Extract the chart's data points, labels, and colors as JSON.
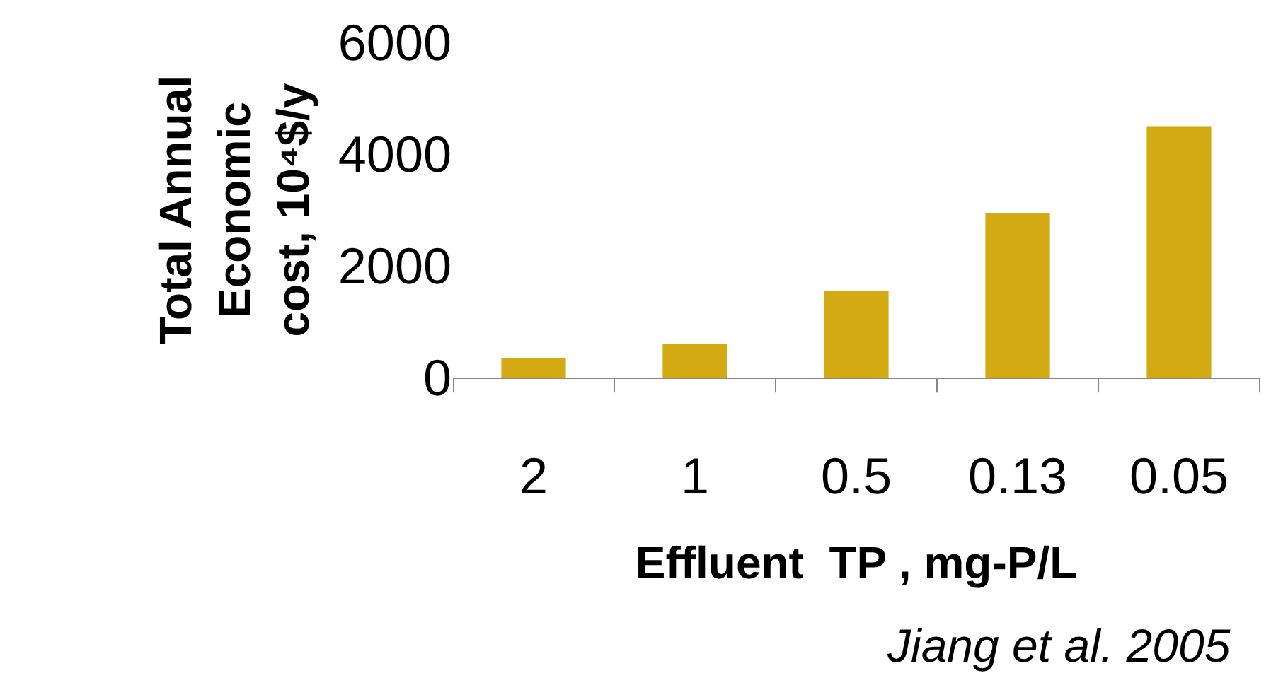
{
  "chart_data": {
    "type": "bar",
    "categories": [
      "2",
      "1",
      "0.5",
      "0.13",
      "0.05"
    ],
    "values": [
      350,
      600,
      1550,
      2950,
      4500
    ],
    "color": "#d4aa13",
    "ylim": [
      0,
      6000
    ],
    "yticks": [
      0,
      2000,
      4000,
      6000
    ],
    "xlabel": "Effluent  TP , mg-P/L",
    "ylabel": "Total Annual\nEconomic\ncost, 10⁴$/y",
    "annotations": [
      "Jiang et al. 2005"
    ],
    "grid": false,
    "legend": false
  }
}
